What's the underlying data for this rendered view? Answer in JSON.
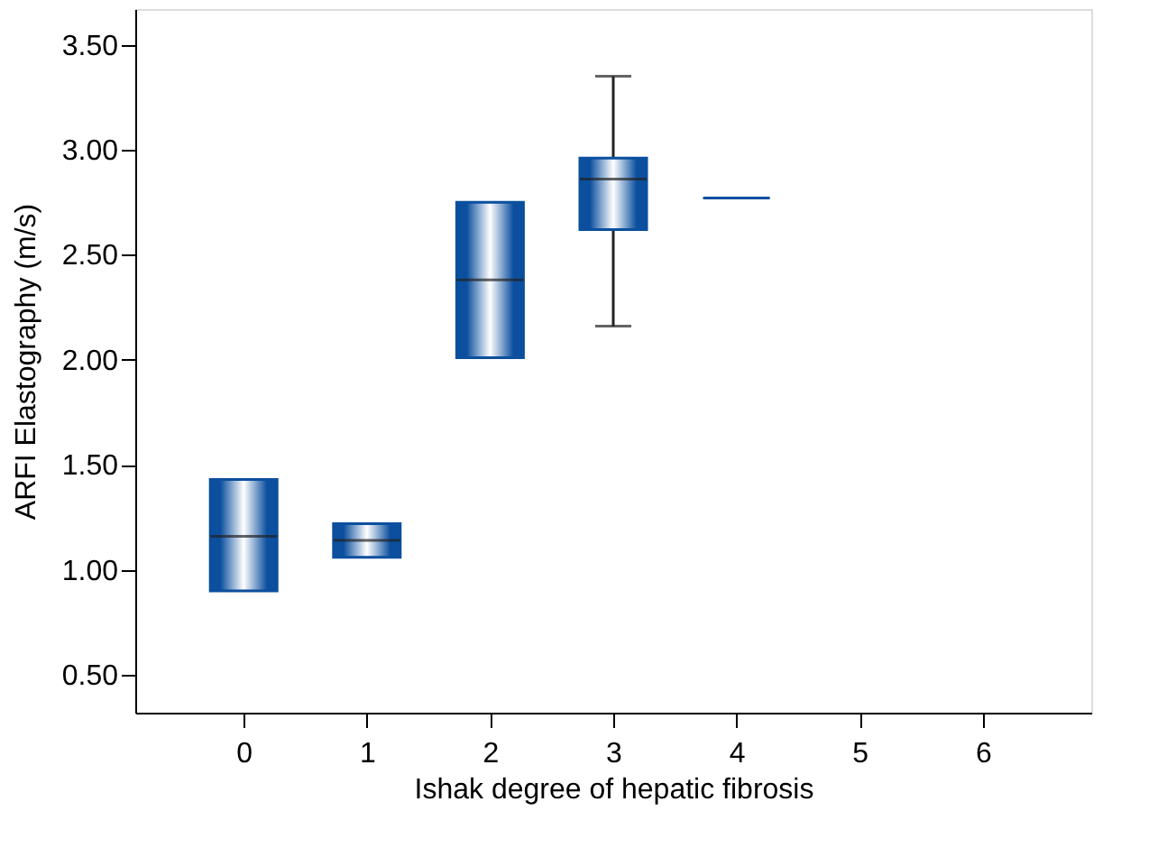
{
  "chart_data": {
    "type": "box",
    "xlabel": "Ishak degree of hepatic fibrosis",
    "ylabel": "ARFI Elastography (m/s)",
    "categories": [
      "0",
      "1",
      "2",
      "3",
      "4",
      "5",
      "6"
    ],
    "color": "#0b4f9e",
    "boxes": [
      {
        "low": 0.9,
        "q1": 0.9,
        "median": 1.16,
        "q3": 1.43,
        "high": 1.43
      },
      {
        "low": 1.06,
        "q1": 1.06,
        "median": 1.14,
        "q3": 1.22,
        "high": 1.22
      },
      {
        "low": 2.01,
        "q1": 2.01,
        "median": 2.38,
        "q3": 2.75,
        "high": 2.75
      },
      {
        "low": 2.16,
        "q1": 2.62,
        "median": 2.86,
        "q3": 2.96,
        "high": 3.35
      },
      {
        "low": 2.77,
        "q1": 2.77,
        "median": 2.77,
        "q3": 2.77,
        "high": 2.77
      },
      null,
      null
    ],
    "ylim": [
      0.32,
      3.67
    ],
    "yticks": [
      {
        "value": 0.5,
        "label": "0.50"
      },
      {
        "value": 1.0,
        "label": "1.00"
      },
      {
        "value": 1.5,
        "label": "1.50"
      },
      {
        "value": 2.0,
        "label": "2.00"
      },
      {
        "value": 2.5,
        "label": "2.50"
      },
      {
        "value": 3.0,
        "label": "3.00"
      },
      {
        "value": 3.5,
        "label": "3.50"
      }
    ],
    "grid": false
  }
}
